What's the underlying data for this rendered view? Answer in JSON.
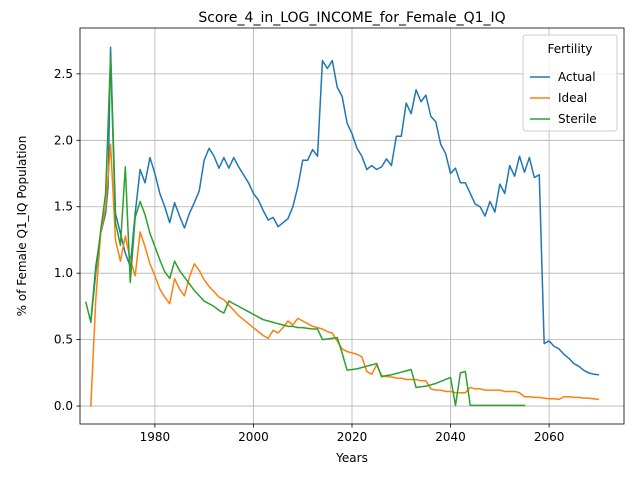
{
  "chart_data": {
    "type": "line",
    "title": "Score_4_in_LOG_INCOME_for_Female_Q1_IQ",
    "xlabel": "Years",
    "ylabel": "% of Female Q1_IQ Population",
    "xlim": [
      1964.8,
      2075.2
    ],
    "ylim": [
      -0.135,
      2.845
    ],
    "xticks": [
      1980,
      2000,
      2020,
      2040,
      2060
    ],
    "yticks": [
      0.0,
      0.5,
      1.0,
      1.5,
      2.0,
      2.5
    ],
    "ytick_labels": [
      "0.0",
      "0.5",
      "1.0",
      "1.5",
      "2.0",
      "2.5"
    ],
    "grid": true,
    "legend": {
      "title": "Fertility",
      "position": "top-right"
    },
    "series": [
      {
        "name": "Actual",
        "color": "#1f77b4",
        "points": [
          [
            1967,
            0.64
          ],
          [
            1968,
            1.05
          ],
          [
            1969,
            1.3
          ],
          [
            1970,
            1.45
          ],
          [
            1970.5,
            1.65
          ],
          [
            1971,
            2.7
          ],
          [
            1972,
            1.45
          ],
          [
            1973,
            1.3
          ],
          [
            1974,
            1.15
          ],
          [
            1975,
            1.05
          ],
          [
            1976,
            1.45
          ],
          [
            1977,
            1.78
          ],
          [
            1978,
            1.68
          ],
          [
            1979,
            1.87
          ],
          [
            1980,
            1.75
          ],
          [
            1981,
            1.6
          ],
          [
            1982,
            1.5
          ],
          [
            1983,
            1.38
          ],
          [
            1984,
            1.53
          ],
          [
            1985,
            1.43
          ],
          [
            1986,
            1.34
          ],
          [
            1987,
            1.45
          ],
          [
            1988,
            1.53
          ],
          [
            1989,
            1.62
          ],
          [
            1990,
            1.85
          ],
          [
            1991,
            1.94
          ],
          [
            1992,
            1.88
          ],
          [
            1993,
            1.79
          ],
          [
            1994,
            1.87
          ],
          [
            1995,
            1.79
          ],
          [
            1996,
            1.87
          ],
          [
            1997,
            1.8
          ],
          [
            1998,
            1.74
          ],
          [
            1999,
            1.68
          ],
          [
            2000,
            1.6
          ],
          [
            2001,
            1.55
          ],
          [
            2002,
            1.47
          ],
          [
            2003,
            1.4
          ],
          [
            2004,
            1.42
          ],
          [
            2005,
            1.35
          ],
          [
            2006,
            1.38
          ],
          [
            2007,
            1.41
          ],
          [
            2008,
            1.5
          ],
          [
            2009,
            1.65
          ],
          [
            2010,
            1.85
          ],
          [
            2011,
            1.85
          ],
          [
            2012,
            1.93
          ],
          [
            2013,
            1.88
          ],
          [
            2014,
            2.6
          ],
          [
            2015,
            2.54
          ],
          [
            2016,
            2.6
          ],
          [
            2017,
            2.4
          ],
          [
            2018,
            2.33
          ],
          [
            2019,
            2.13
          ],
          [
            2020,
            2.05
          ],
          [
            2021,
            1.94
          ],
          [
            2022,
            1.88
          ],
          [
            2023,
            1.78
          ],
          [
            2024,
            1.81
          ],
          [
            2025,
            1.78
          ],
          [
            2026,
            1.8
          ],
          [
            2027,
            1.86
          ],
          [
            2028,
            1.81
          ],
          [
            2029,
            2.03
          ],
          [
            2030,
            2.03
          ],
          [
            2031,
            2.28
          ],
          [
            2032,
            2.2
          ],
          [
            2033,
            2.38
          ],
          [
            2034,
            2.29
          ],
          [
            2035,
            2.34
          ],
          [
            2036,
            2.18
          ],
          [
            2037,
            2.14
          ],
          [
            2038,
            1.97
          ],
          [
            2039,
            1.9
          ],
          [
            2040,
            1.75
          ],
          [
            2041,
            1.79
          ],
          [
            2042,
            1.68
          ],
          [
            2043,
            1.68
          ],
          [
            2044,
            1.6
          ],
          [
            2045,
            1.52
          ],
          [
            2046,
            1.5
          ],
          [
            2047,
            1.43
          ],
          [
            2048,
            1.54
          ],
          [
            2049,
            1.46
          ],
          [
            2050,
            1.67
          ],
          [
            2051,
            1.6
          ],
          [
            2052,
            1.81
          ],
          [
            2053,
            1.73
          ],
          [
            2054,
            1.88
          ],
          [
            2055,
            1.76
          ],
          [
            2056,
            1.87
          ],
          [
            2057,
            1.72
          ],
          [
            2058,
            1.74
          ],
          [
            2059,
            0.47
          ],
          [
            2060,
            0.49
          ],
          [
            2061,
            0.45
          ],
          [
            2062,
            0.43
          ],
          [
            2063,
            0.39
          ],
          [
            2064,
            0.36
          ],
          [
            2065,
            0.32
          ],
          [
            2066,
            0.3
          ],
          [
            2067,
            0.27
          ],
          [
            2068,
            0.25
          ],
          [
            2069,
            0.24
          ],
          [
            2070,
            0.235
          ]
        ]
      },
      {
        "name": "Ideal",
        "color": "#ff7f0e",
        "points": [
          [
            1967,
            0.0
          ],
          [
            1968,
            0.8
          ],
          [
            1969,
            1.3
          ],
          [
            1970,
            1.5
          ],
          [
            1971,
            1.97
          ],
          [
            1972,
            1.25
          ],
          [
            1973,
            1.09
          ],
          [
            1974,
            1.28
          ],
          [
            1975,
            1.1
          ],
          [
            1976,
            0.98
          ],
          [
            1977,
            1.31
          ],
          [
            1978,
            1.2
          ],
          [
            1979,
            1.07
          ],
          [
            1980,
            0.98
          ],
          [
            1981,
            0.88
          ],
          [
            1982,
            0.82
          ],
          [
            1983,
            0.77
          ],
          [
            1984,
            0.96
          ],
          [
            1985,
            0.88
          ],
          [
            1986,
            0.83
          ],
          [
            1987,
            0.97
          ],
          [
            1988,
            1.07
          ],
          [
            1989,
            1.02
          ],
          [
            1990,
            0.95
          ],
          [
            1991,
            0.9
          ],
          [
            1992,
            0.86
          ],
          [
            1993,
            0.82
          ],
          [
            1994,
            0.8
          ],
          [
            1995,
            0.76
          ],
          [
            1996,
            0.72
          ],
          [
            1997,
            0.68
          ],
          [
            1998,
            0.65
          ],
          [
            1999,
            0.62
          ],
          [
            2000,
            0.59
          ],
          [
            2001,
            0.56
          ],
          [
            2002,
            0.53
          ],
          [
            2003,
            0.51
          ],
          [
            2004,
            0.57
          ],
          [
            2005,
            0.55
          ],
          [
            2006,
            0.59
          ],
          [
            2007,
            0.64
          ],
          [
            2008,
            0.61
          ],
          [
            2009,
            0.66
          ],
          [
            2010,
            0.64
          ],
          [
            2011,
            0.62
          ],
          [
            2012,
            0.6
          ],
          [
            2013,
            0.59
          ],
          [
            2014,
            0.58
          ],
          [
            2015,
            0.56
          ],
          [
            2016,
            0.55
          ],
          [
            2017,
            0.49
          ],
          [
            2018,
            0.43
          ],
          [
            2019,
            0.41
          ],
          [
            2020,
            0.4
          ],
          [
            2021,
            0.39
          ],
          [
            2022,
            0.37
          ],
          [
            2023,
            0.26
          ],
          [
            2024,
            0.24
          ],
          [
            2025,
            0.31
          ],
          [
            2026,
            0.23
          ],
          [
            2027,
            0.22
          ],
          [
            2028,
            0.22
          ],
          [
            2029,
            0.21
          ],
          [
            2030,
            0.21
          ],
          [
            2031,
            0.2
          ],
          [
            2032,
            0.2
          ],
          [
            2033,
            0.2
          ],
          [
            2034,
            0.19
          ],
          [
            2035,
            0.19
          ],
          [
            2036,
            0.13
          ],
          [
            2037,
            0.12
          ],
          [
            2038,
            0.12
          ],
          [
            2039,
            0.11
          ],
          [
            2040,
            0.11
          ],
          [
            2041,
            0.1
          ],
          [
            2042,
            0.1
          ],
          [
            2043,
            0.1
          ],
          [
            2044,
            0.14
          ],
          [
            2045,
            0.13
          ],
          [
            2046,
            0.13
          ],
          [
            2047,
            0.12
          ],
          [
            2048,
            0.12
          ],
          [
            2049,
            0.12
          ],
          [
            2050,
            0.12
          ],
          [
            2051,
            0.11
          ],
          [
            2052,
            0.11
          ],
          [
            2053,
            0.11
          ],
          [
            2054,
            0.1
          ],
          [
            2055,
            0.07
          ],
          [
            2056,
            0.07
          ],
          [
            2057,
            0.065
          ],
          [
            2058,
            0.065
          ],
          [
            2059,
            0.06
          ],
          [
            2060,
            0.055
          ],
          [
            2061,
            0.055
          ],
          [
            2062,
            0.05
          ],
          [
            2063,
            0.07
          ],
          [
            2064,
            0.07
          ],
          [
            2065,
            0.065
          ],
          [
            2066,
            0.065
          ],
          [
            2067,
            0.06
          ],
          [
            2068,
            0.06
          ],
          [
            2069,
            0.055
          ],
          [
            2070,
            0.05
          ]
        ]
      },
      {
        "name": "Sterile",
        "color": "#2ca02c",
        "points": [
          [
            1966,
            0.78
          ],
          [
            1967,
            0.63
          ],
          [
            1968,
            1.0
          ],
          [
            1969,
            1.32
          ],
          [
            1970,
            1.6
          ],
          [
            1971,
            2.63
          ],
          [
            1972,
            1.38
          ],
          [
            1973,
            1.21
          ],
          [
            1974,
            1.8
          ],
          [
            1975,
            0.93
          ],
          [
            1976,
            1.42
          ],
          [
            1977,
            1.54
          ],
          [
            1978,
            1.44
          ],
          [
            1979,
            1.3
          ],
          [
            1980,
            1.2
          ],
          [
            1981,
            1.1
          ],
          [
            1982,
            1.01
          ],
          [
            1983,
            0.96
          ],
          [
            1984,
            1.09
          ],
          [
            1985,
            1.02
          ],
          [
            1986,
            0.97
          ],
          [
            1987,
            0.92
          ],
          [
            1988,
            0.87
          ],
          [
            1989,
            0.83
          ],
          [
            1990,
            0.79
          ],
          [
            1991,
            0.77
          ],
          [
            1992,
            0.75
          ],
          [
            1993,
            0.72
          ],
          [
            1994,
            0.7
          ],
          [
            1995,
            0.79
          ],
          [
            1996,
            0.77
          ],
          [
            1997,
            0.75
          ],
          [
            1998,
            0.73
          ],
          [
            1999,
            0.71
          ],
          [
            2000,
            0.69
          ],
          [
            2001,
            0.67
          ],
          [
            2002,
            0.65
          ],
          [
            2003,
            0.64
          ],
          [
            2004,
            0.63
          ],
          [
            2005,
            0.62
          ],
          [
            2006,
            0.61
          ],
          [
            2007,
            0.6
          ],
          [
            2008,
            0.6
          ],
          [
            2009,
            0.59
          ],
          [
            2010,
            0.59
          ],
          [
            2011,
            0.585
          ],
          [
            2012,
            0.58
          ],
          [
            2013,
            0.58
          ],
          [
            2014,
            0.5
          ],
          [
            2015,
            0.505
          ],
          [
            2016,
            0.51
          ],
          [
            2017,
            0.515
          ],
          [
            2018,
            0.4
          ],
          [
            2019,
            0.27
          ],
          [
            2020,
            0.275
          ],
          [
            2021,
            0.28
          ],
          [
            2022,
            0.29
          ],
          [
            2023,
            0.3
          ],
          [
            2024,
            0.31
          ],
          [
            2025,
            0.32
          ],
          [
            2026,
            0.22
          ],
          [
            2027,
            0.23
          ],
          [
            2028,
            0.235
          ],
          [
            2029,
            0.245
          ],
          [
            2030,
            0.255
          ],
          [
            2031,
            0.265
          ],
          [
            2032,
            0.275
          ],
          [
            2033,
            0.14
          ],
          [
            2034,
            0.145
          ],
          [
            2035,
            0.15
          ],
          [
            2036,
            0.16
          ],
          [
            2037,
            0.17
          ],
          [
            2038,
            0.185
          ],
          [
            2039,
            0.2
          ],
          [
            2040,
            0.215
          ],
          [
            2041,
            0.005
          ],
          [
            2042,
            0.25
          ],
          [
            2043,
            0.26
          ],
          [
            2044,
            0.005
          ],
          [
            2045,
            0.005
          ],
          [
            2046,
            0.005
          ],
          [
            2047,
            0.005
          ],
          [
            2048,
            0.005
          ],
          [
            2049,
            0.005
          ],
          [
            2050,
            0.005
          ],
          [
            2051,
            0.005
          ],
          [
            2052,
            0.005
          ],
          [
            2053,
            0.005
          ],
          [
            2054,
            0.005
          ],
          [
            2055,
            0.005
          ]
        ]
      }
    ]
  }
}
